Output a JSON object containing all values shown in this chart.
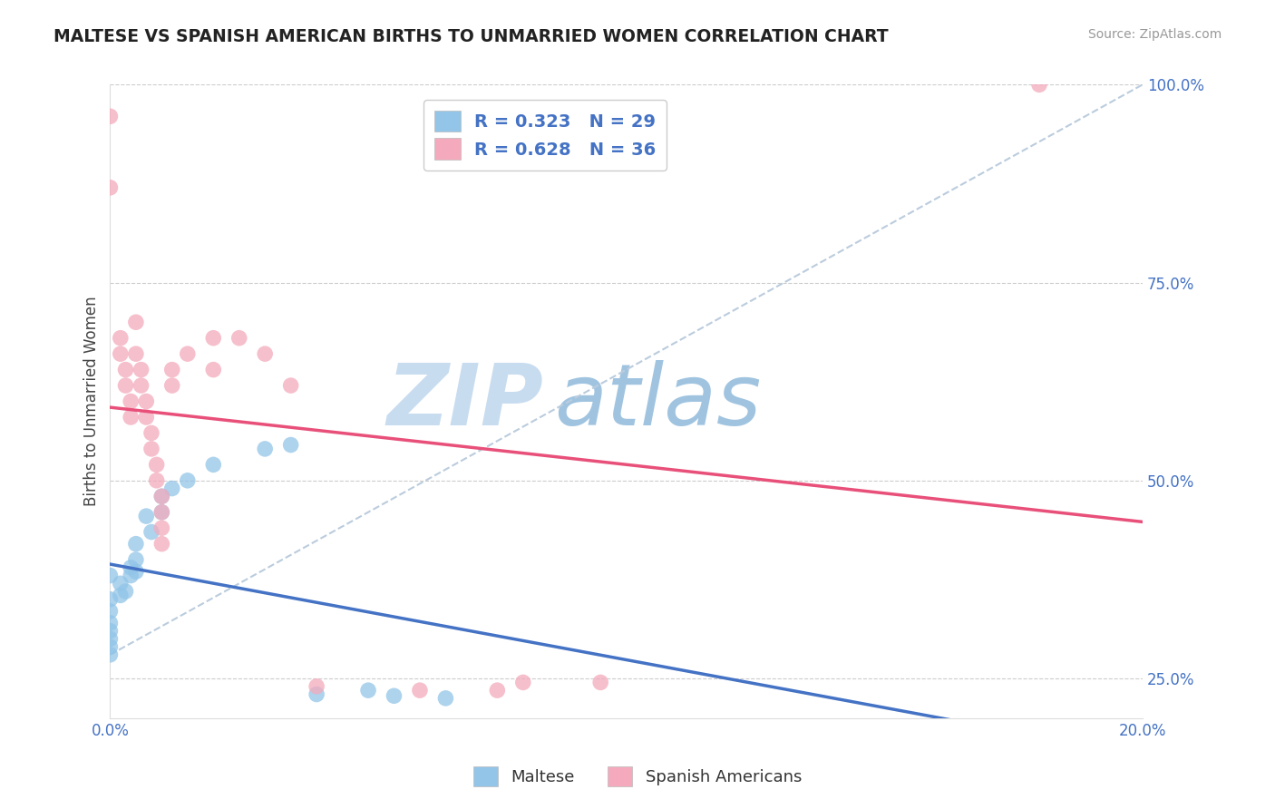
{
  "title": "MALTESE VS SPANISH AMERICAN BIRTHS TO UNMARRIED WOMEN CORRELATION CHART",
  "source_text": "Source: ZipAtlas.com",
  "ylabel": "Births to Unmarried Women",
  "maltese_R": 0.323,
  "maltese_N": 29,
  "spanish_R": 0.628,
  "spanish_N": 36,
  "xmin": 0.0,
  "xmax": 0.2,
  "ymin": 0.2,
  "ymax": 1.0,
  "ytick_positions": [
    0.25,
    0.5,
    0.75,
    1.0
  ],
  "maltese_color": "#92C5E8",
  "spanish_color": "#F4AABC",
  "maltese_line_color": "#4472C4",
  "spanish_line_color": "#E8507A",
  "ref_line_color": "#BBCCDD",
  "watermark_zip": "ZIP",
  "watermark_atlas": "atlas",
  "watermark_color_zip": "#C8DCF0",
  "watermark_color_atlas": "#A0C4E0",
  "background_color": "#FFFFFF",
  "maltese_scatter": [
    [
      0.0,
      0.38
    ],
    [
      0.0,
      0.35
    ],
    [
      0.0,
      0.335
    ],
    [
      0.0,
      0.32
    ],
    [
      0.0,
      0.31
    ],
    [
      0.0,
      0.3
    ],
    [
      0.0,
      0.29
    ],
    [
      0.0,
      0.28
    ],
    [
      0.002,
      0.37
    ],
    [
      0.002,
      0.355
    ],
    [
      0.003,
      0.36
    ],
    [
      0.004,
      0.39
    ],
    [
      0.004,
      0.38
    ],
    [
      0.005,
      0.42
    ],
    [
      0.005,
      0.4
    ],
    [
      0.005,
      0.385
    ],
    [
      0.007,
      0.455
    ],
    [
      0.008,
      0.435
    ],
    [
      0.01,
      0.48
    ],
    [
      0.01,
      0.46
    ],
    [
      0.012,
      0.49
    ],
    [
      0.015,
      0.5
    ],
    [
      0.02,
      0.52
    ],
    [
      0.03,
      0.54
    ],
    [
      0.035,
      0.545
    ],
    [
      0.04,
      0.23
    ],
    [
      0.05,
      0.235
    ],
    [
      0.055,
      0.228
    ],
    [
      0.065,
      0.225
    ]
  ],
  "spanish_scatter": [
    [
      0.0,
      0.96
    ],
    [
      0.0,
      0.87
    ],
    [
      0.002,
      0.68
    ],
    [
      0.002,
      0.66
    ],
    [
      0.003,
      0.64
    ],
    [
      0.003,
      0.62
    ],
    [
      0.004,
      0.6
    ],
    [
      0.004,
      0.58
    ],
    [
      0.005,
      0.7
    ],
    [
      0.005,
      0.66
    ],
    [
      0.006,
      0.64
    ],
    [
      0.006,
      0.62
    ],
    [
      0.007,
      0.6
    ],
    [
      0.007,
      0.58
    ],
    [
      0.008,
      0.56
    ],
    [
      0.008,
      0.54
    ],
    [
      0.009,
      0.52
    ],
    [
      0.009,
      0.5
    ],
    [
      0.01,
      0.48
    ],
    [
      0.01,
      0.46
    ],
    [
      0.01,
      0.44
    ],
    [
      0.01,
      0.42
    ],
    [
      0.012,
      0.64
    ],
    [
      0.012,
      0.62
    ],
    [
      0.015,
      0.66
    ],
    [
      0.02,
      0.68
    ],
    [
      0.02,
      0.64
    ],
    [
      0.025,
      0.68
    ],
    [
      0.03,
      0.66
    ],
    [
      0.035,
      0.62
    ],
    [
      0.04,
      0.24
    ],
    [
      0.06,
      0.235
    ],
    [
      0.075,
      0.235
    ],
    [
      0.08,
      0.245
    ],
    [
      0.095,
      0.245
    ],
    [
      0.18,
      1.0
    ]
  ]
}
